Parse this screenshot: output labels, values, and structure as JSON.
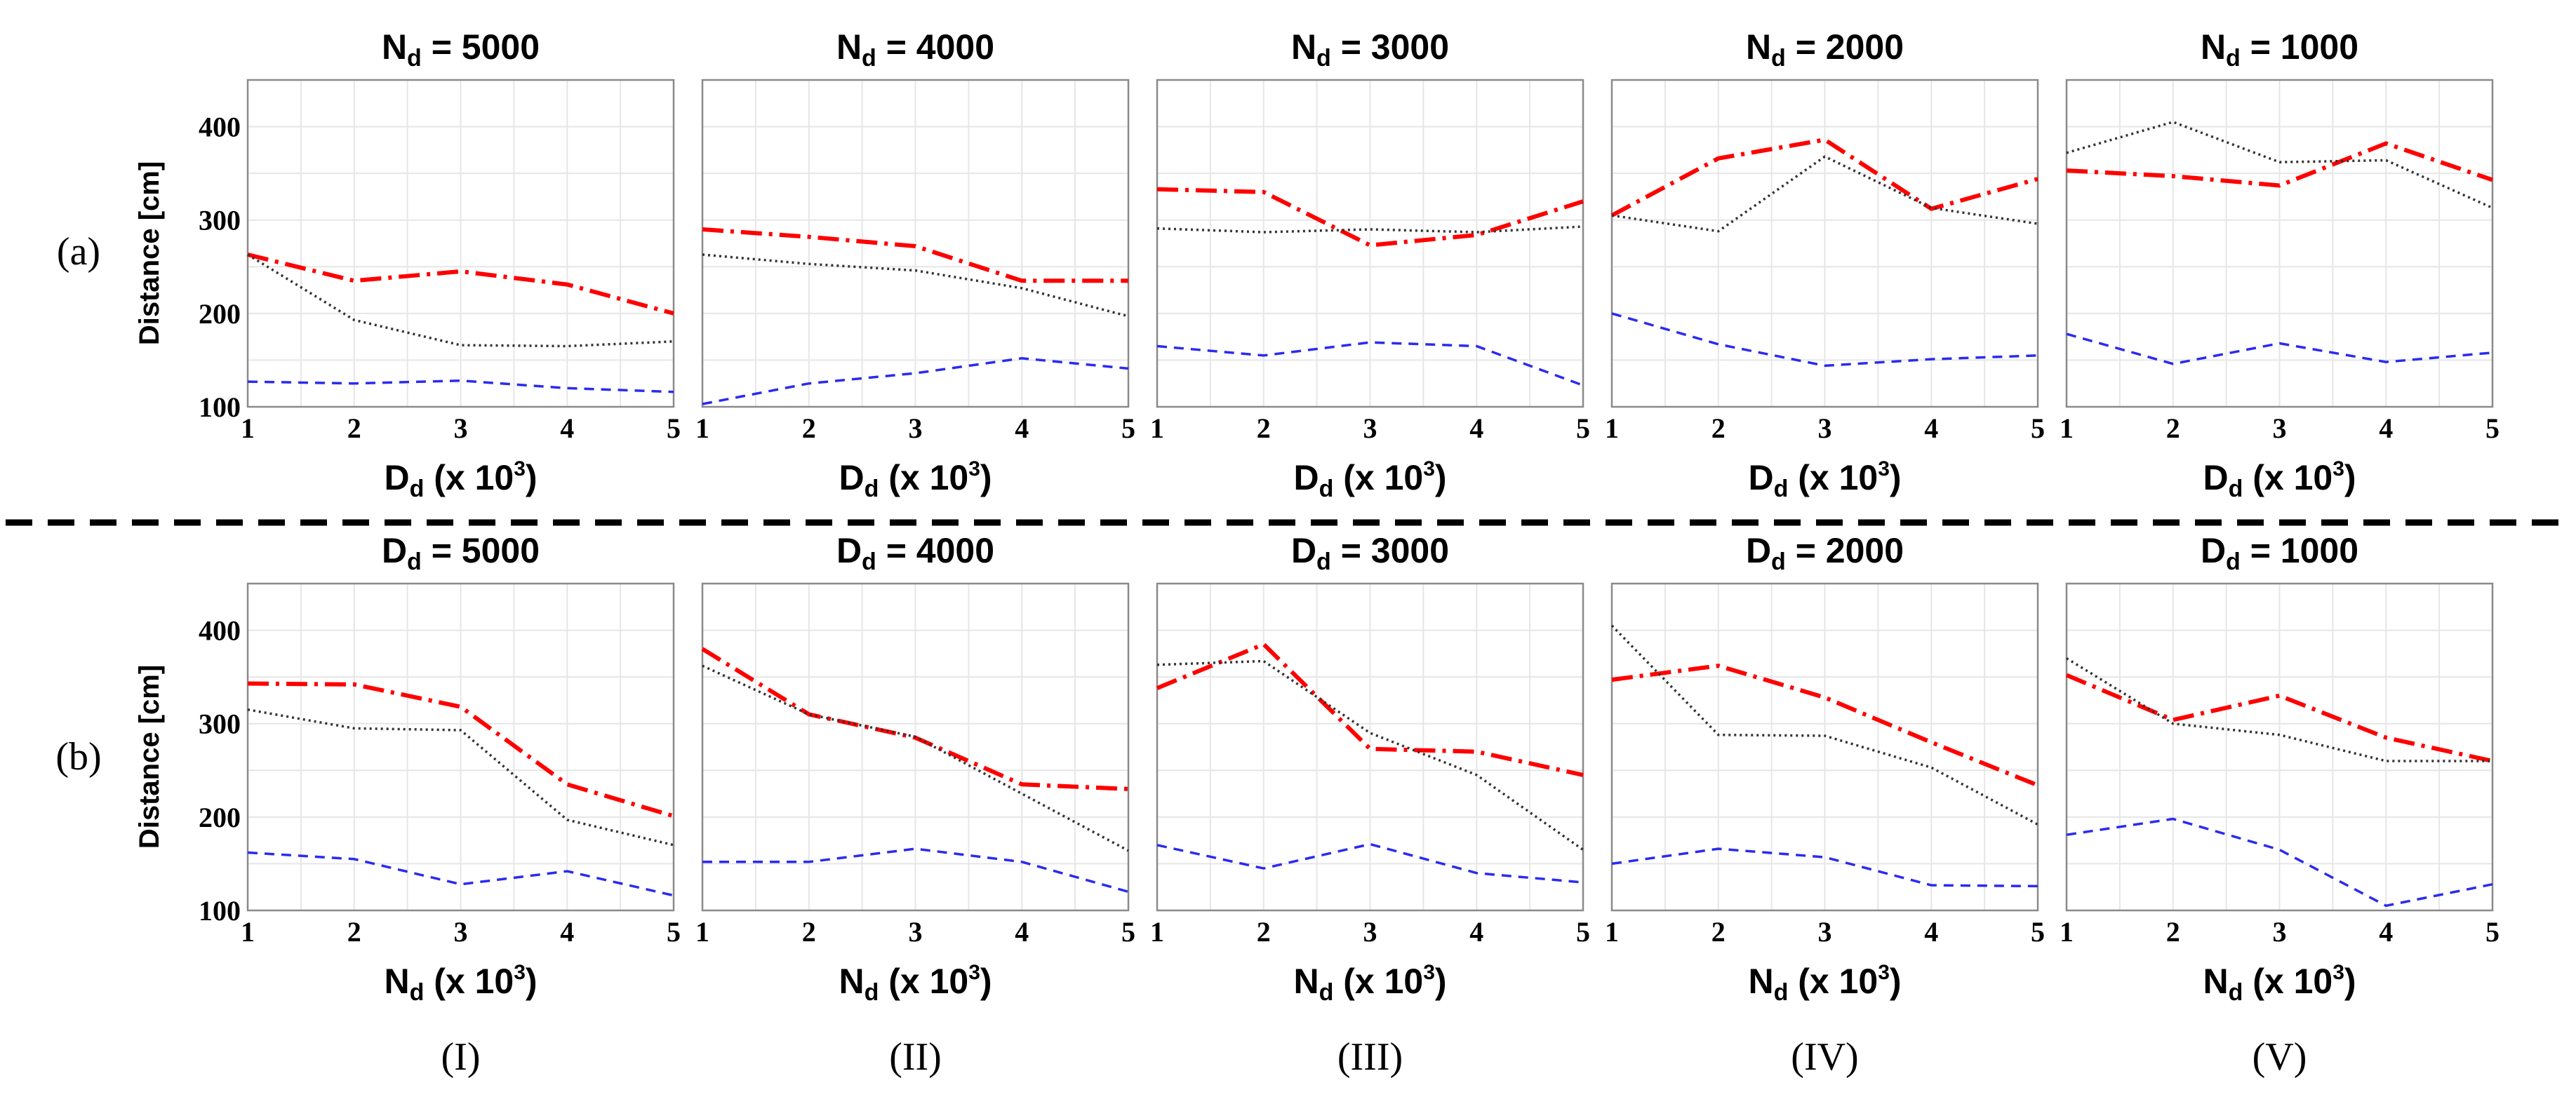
{
  "row_labels": [
    "(a)",
    "(b)"
  ],
  "column_labels": [
    "(I)",
    "(II)",
    "(III)",
    "(IV)",
    "(V)"
  ],
  "chart_data": [
    {
      "type": "line",
      "row": "a",
      "col": 0,
      "title": {
        "var": "N",
        "sub": "d",
        "eq": " = 5000"
      },
      "xlabel": {
        "var": "D",
        "sub": "d",
        "pre": " (x 10",
        "sup": "3",
        "post": ")"
      },
      "ylabel": "Distance [cm]",
      "x": [
        1,
        2,
        3,
        4,
        5
      ],
      "xlim": [
        1,
        5
      ],
      "ylim": [
        100,
        450
      ],
      "yticks": [
        100,
        200,
        300,
        400
      ],
      "xticks": [
        1,
        2,
        3,
        4,
        5
      ],
      "series": [
        {
          "name": "red-dashdot",
          "color": "#ff0000",
          "values": [
            263,
            235,
            245,
            231,
            200
          ]
        },
        {
          "name": "black-dotted",
          "color": "#333333",
          "values": [
            263,
            193,
            166,
            165,
            170
          ]
        },
        {
          "name": "blue-dashed",
          "color": "#2b2bf0",
          "values": [
            127,
            125,
            128,
            120,
            116
          ]
        }
      ]
    },
    {
      "type": "line",
      "row": "a",
      "col": 1,
      "title": {
        "var": "N",
        "sub": "d",
        "eq": " = 4000"
      },
      "xlabel": {
        "var": "D",
        "sub": "d",
        "pre": " (x 10",
        "sup": "3",
        "post": ")"
      },
      "ylabel": "",
      "x": [
        1,
        2,
        3,
        4,
        5
      ],
      "xlim": [
        1,
        5
      ],
      "ylim": [
        100,
        450
      ],
      "yticks": [
        100,
        200,
        300,
        400
      ],
      "xticks": [
        1,
        2,
        3,
        4,
        5
      ],
      "series": [
        {
          "name": "red-dashdot",
          "color": "#ff0000",
          "values": [
            290,
            282,
            272,
            235,
            235
          ]
        },
        {
          "name": "black-dotted",
          "color": "#333333",
          "values": [
            263,
            253,
            246,
            227,
            197
          ]
        },
        {
          "name": "blue-dashed",
          "color": "#2b2bf0",
          "values": [
            103,
            125,
            136,
            152,
            141
          ]
        }
      ]
    },
    {
      "type": "line",
      "row": "a",
      "col": 2,
      "title": {
        "var": "N",
        "sub": "d",
        "eq": " = 3000"
      },
      "xlabel": {
        "var": "D",
        "sub": "d",
        "pre": " (x 10",
        "sup": "3",
        "post": ")"
      },
      "ylabel": "",
      "x": [
        1,
        2,
        3,
        4,
        5
      ],
      "xlim": [
        1,
        5
      ],
      "ylim": [
        100,
        450
      ],
      "yticks": [
        100,
        200,
        300,
        400
      ],
      "xticks": [
        1,
        2,
        3,
        4,
        5
      ],
      "series": [
        {
          "name": "red-dashdot",
          "color": "#ff0000",
          "values": [
            333,
            330,
            273,
            284,
            320
          ]
        },
        {
          "name": "black-dotted",
          "color": "#333333",
          "values": [
            291,
            287,
            290,
            287,
            293
          ]
        },
        {
          "name": "blue-dashed",
          "color": "#2b2bf0",
          "values": [
            165,
            155,
            169,
            165,
            123
          ]
        }
      ]
    },
    {
      "type": "line",
      "row": "a",
      "col": 3,
      "title": {
        "var": "N",
        "sub": "d",
        "eq": " = 2000"
      },
      "xlabel": {
        "var": "D",
        "sub": "d",
        "pre": " (x 10",
        "sup": "3",
        "post": ")"
      },
      "ylabel": "",
      "x": [
        1,
        2,
        3,
        4,
        5
      ],
      "xlim": [
        1,
        5
      ],
      "ylim": [
        100,
        450
      ],
      "yticks": [
        100,
        200,
        300,
        400
      ],
      "xticks": [
        1,
        2,
        3,
        4,
        5
      ],
      "series": [
        {
          "name": "red-dashdot",
          "color": "#ff0000",
          "values": [
            305,
            366,
            386,
            312,
            344
          ]
        },
        {
          "name": "black-dotted",
          "color": "#333333",
          "values": [
            305,
            288,
            368,
            313,
            296
          ]
        },
        {
          "name": "blue-dashed",
          "color": "#2b2bf0",
          "values": [
            200,
            167,
            144,
            151,
            155
          ]
        }
      ]
    },
    {
      "type": "line",
      "row": "a",
      "col": 4,
      "title": {
        "var": "N",
        "sub": "d",
        "eq": " = 1000"
      },
      "xlabel": {
        "var": "D",
        "sub": "d",
        "pre": " (x 10",
        "sup": "3",
        "post": ")"
      },
      "ylabel": "",
      "x": [
        1,
        2,
        3,
        4,
        5
      ],
      "xlim": [
        1,
        5
      ],
      "ylim": [
        100,
        450
      ],
      "yticks": [
        100,
        200,
        300,
        400
      ],
      "xticks": [
        1,
        2,
        3,
        4,
        5
      ],
      "series": [
        {
          "name": "red-dashdot",
          "color": "#ff0000",
          "values": [
            353,
            347,
            337,
            382,
            343
          ]
        },
        {
          "name": "black-dotted",
          "color": "#333333",
          "values": [
            372,
            405,
            362,
            364,
            313
          ]
        },
        {
          "name": "blue-dashed",
          "color": "#2b2bf0",
          "values": [
            178,
            146,
            168,
            148,
            158
          ]
        }
      ]
    },
    {
      "type": "line",
      "row": "b",
      "col": 0,
      "title": {
        "var": "D",
        "sub": "d",
        "eq": " = 5000"
      },
      "xlabel": {
        "var": "N",
        "sub": "d",
        "pre": " (x 10",
        "sup": "3",
        "post": ")"
      },
      "ylabel": "Distance [cm]",
      "x": [
        1,
        2,
        3,
        4,
        5
      ],
      "xlim": [
        1,
        5
      ],
      "ylim": [
        100,
        450
      ],
      "yticks": [
        100,
        200,
        300,
        400
      ],
      "xticks": [
        1,
        2,
        3,
        4,
        5
      ],
      "series": [
        {
          "name": "red-dashdot",
          "color": "#ff0000",
          "values": [
            343,
            342,
            318,
            235,
            201
          ]
        },
        {
          "name": "black-dotted",
          "color": "#333333",
          "values": [
            315,
            295,
            293,
            197,
            170
          ]
        },
        {
          "name": "blue-dashed",
          "color": "#2b2bf0",
          "values": [
            162,
            155,
            128,
            142,
            116
          ]
        }
      ]
    },
    {
      "type": "line",
      "row": "b",
      "col": 1,
      "title": {
        "var": "D",
        "sub": "d",
        "eq": " = 4000"
      },
      "xlabel": {
        "var": "N",
        "sub": "d",
        "pre": " (x 10",
        "sup": "3",
        "post": ")"
      },
      "ylabel": "",
      "x": [
        1,
        2,
        3,
        4,
        5
      ],
      "xlim": [
        1,
        5
      ],
      "ylim": [
        100,
        450
      ],
      "yticks": [
        100,
        200,
        300,
        400
      ],
      "xticks": [
        1,
        2,
        3,
        4,
        5
      ],
      "series": [
        {
          "name": "red-dashdot",
          "color": "#ff0000",
          "values": [
            380,
            310,
            285,
            235,
            230
          ]
        },
        {
          "name": "black-dotted",
          "color": "#333333",
          "values": [
            362,
            310,
            286,
            225,
            164
          ]
        },
        {
          "name": "blue-dashed",
          "color": "#2b2bf0",
          "values": [
            152,
            152,
            166,
            152,
            120
          ]
        }
      ]
    },
    {
      "type": "line",
      "row": "b",
      "col": 2,
      "title": {
        "var": "D",
        "sub": "d",
        "eq": " = 3000"
      },
      "xlabel": {
        "var": "N",
        "sub": "d",
        "pre": " (x 10",
        "sup": "3",
        "post": ")"
      },
      "ylabel": "",
      "x": [
        1,
        2,
        3,
        4,
        5
      ],
      "xlim": [
        1,
        5
      ],
      "ylim": [
        100,
        450
      ],
      "yticks": [
        100,
        200,
        300,
        400
      ],
      "xticks": [
        1,
        2,
        3,
        4,
        5
      ],
      "series": [
        {
          "name": "red-dashdot",
          "color": "#ff0000",
          "values": [
            338,
            385,
            273,
            270,
            245
          ]
        },
        {
          "name": "black-dotted",
          "color": "#333333",
          "values": [
            363,
            367,
            290,
            245,
            165
          ]
        },
        {
          "name": "blue-dashed",
          "color": "#2b2bf0",
          "values": [
            170,
            145,
            171,
            140,
            130
          ]
        }
      ]
    },
    {
      "type": "line",
      "row": "b",
      "col": 3,
      "title": {
        "var": "D",
        "sub": "d",
        "eq": " = 2000"
      },
      "xlabel": {
        "var": "N",
        "sub": "d",
        "pre": " (x 10",
        "sup": "3",
        "post": ")"
      },
      "ylabel": "",
      "x": [
        1,
        2,
        3,
        4,
        5
      ],
      "xlim": [
        1,
        5
      ],
      "ylim": [
        100,
        450
      ],
      "yticks": [
        100,
        200,
        300,
        400
      ],
      "xticks": [
        1,
        2,
        3,
        4,
        5
      ],
      "series": [
        {
          "name": "red-dashdot",
          "color": "#ff0000",
          "values": [
            347,
            362,
            328,
            280,
            234
          ]
        },
        {
          "name": "black-dotted",
          "color": "#333333",
          "values": [
            405,
            288,
            287,
            253,
            192
          ]
        },
        {
          "name": "blue-dashed",
          "color": "#2b2bf0",
          "values": [
            150,
            166,
            157,
            127,
            126
          ]
        }
      ]
    },
    {
      "type": "line",
      "row": "b",
      "col": 4,
      "title": {
        "var": "D",
        "sub": "d",
        "eq": " = 1000"
      },
      "xlabel": {
        "var": "N",
        "sub": "d",
        "pre": " (x 10",
        "sup": "3",
        "post": ")"
      },
      "ylabel": "",
      "x": [
        1,
        2,
        3,
        4,
        5
      ],
      "xlim": [
        1,
        5
      ],
      "ylim": [
        100,
        450
      ],
      "yticks": [
        100,
        200,
        300,
        400
      ],
      "xticks": [
        1,
        2,
        3,
        4,
        5
      ],
      "series": [
        {
          "name": "red-dashdot",
          "color": "#ff0000",
          "values": [
            352,
            304,
            330,
            285,
            260
          ]
        },
        {
          "name": "black-dotted",
          "color": "#333333",
          "values": [
            370,
            300,
            288,
            260,
            260
          ]
        },
        {
          "name": "blue-dashed",
          "color": "#2b2bf0",
          "values": [
            181,
            198,
            165,
            105,
            128
          ]
        }
      ]
    }
  ]
}
